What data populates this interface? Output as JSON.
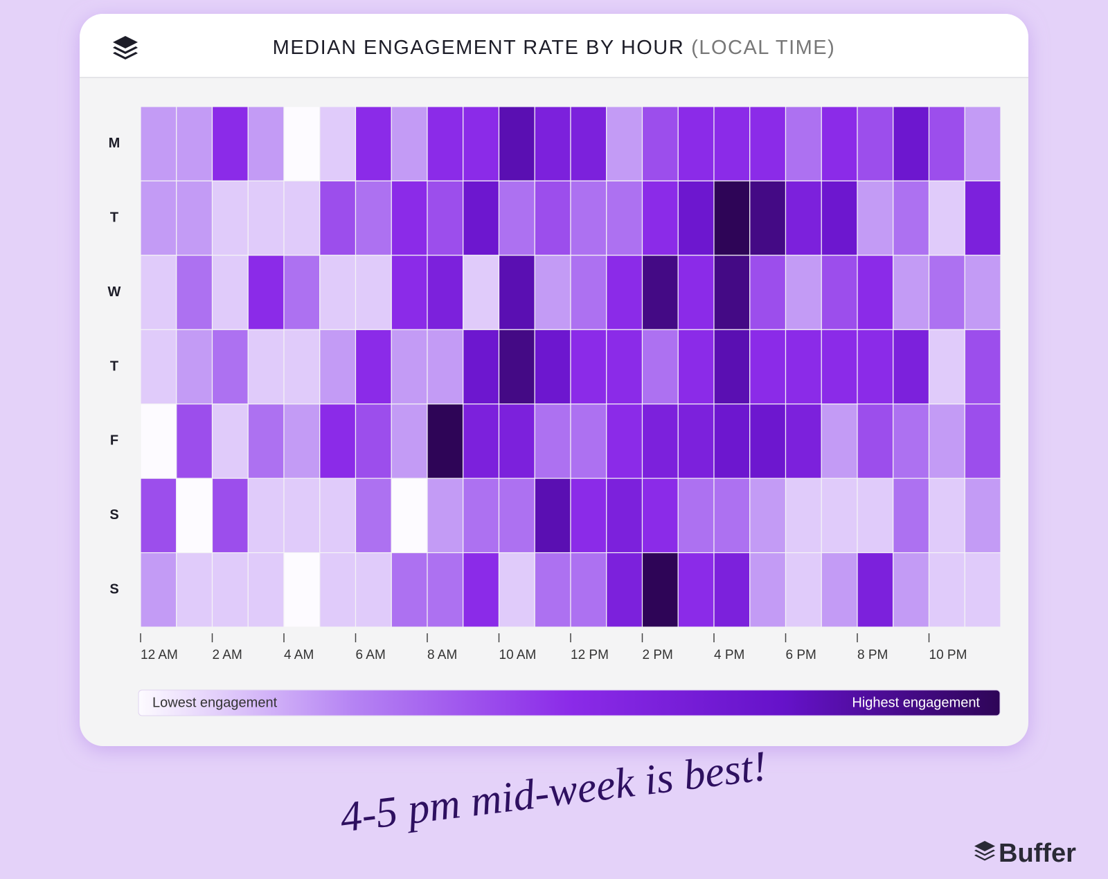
{
  "chart_data": {
    "type": "heatmap",
    "title": "MEDIAN ENGAGEMENT RATE BY HOUR",
    "subtitle": "(LOCAL TIME)",
    "rows": [
      "M",
      "T",
      "W",
      "T",
      "F",
      "S",
      "S"
    ],
    "categories": [
      "12 AM",
      null,
      "2 AM",
      null,
      "4 AM",
      null,
      "6 AM",
      null,
      "8 AM",
      null,
      "10 AM",
      null,
      "12 PM",
      null,
      "2 PM",
      null,
      "4 PM",
      null,
      "6 PM",
      null,
      "8 PM",
      null,
      "10 PM",
      null
    ],
    "values": [
      [
        2,
        2,
        5,
        2,
        0,
        1,
        5,
        2,
        5,
        5,
        8,
        6,
        6,
        2,
        4,
        5,
        5,
        5,
        3,
        5,
        4,
        7,
        4,
        2
      ],
      [
        2,
        2,
        1,
        1,
        1,
        4,
        3,
        5,
        4,
        7,
        3,
        4,
        3,
        3,
        5,
        7,
        10,
        9,
        6,
        7,
        2,
        3,
        1,
        6
      ],
      [
        1,
        3,
        1,
        5,
        3,
        1,
        1,
        5,
        6,
        1,
        8,
        2,
        3,
        5,
        9,
        5,
        9,
        4,
        2,
        4,
        5,
        2,
        3,
        2
      ],
      [
        1,
        2,
        3,
        1,
        1,
        2,
        5,
        2,
        2,
        7,
        9,
        7,
        5,
        5,
        3,
        5,
        8,
        5,
        5,
        5,
        5,
        6,
        1,
        4
      ],
      [
        0,
        4,
        1,
        3,
        2,
        5,
        4,
        2,
        10,
        6,
        6,
        3,
        3,
        5,
        6,
        6,
        7,
        7,
        6,
        2,
        4,
        3,
        2,
        4
      ],
      [
        4,
        0,
        4,
        1,
        1,
        1,
        3,
        0,
        2,
        3,
        3,
        8,
        5,
        6,
        5,
        3,
        3,
        2,
        1,
        1,
        1,
        3,
        1,
        2
      ],
      [
        2,
        1,
        1,
        1,
        0,
        1,
        1,
        3,
        3,
        5,
        1,
        3,
        3,
        6,
        10,
        5,
        6,
        2,
        1,
        2,
        6,
        2,
        1,
        1
      ]
    ],
    "colorscale": [
      "#fdfbff",
      "#b583f3",
      "#8b2be8",
      "#6512c9",
      "#2e0557"
    ],
    "legend_low": "Lowest engagement",
    "legend_high": "Highest engagement",
    "annotation": "4-5 pm mid-week is best!",
    "brand": "Buffer"
  }
}
